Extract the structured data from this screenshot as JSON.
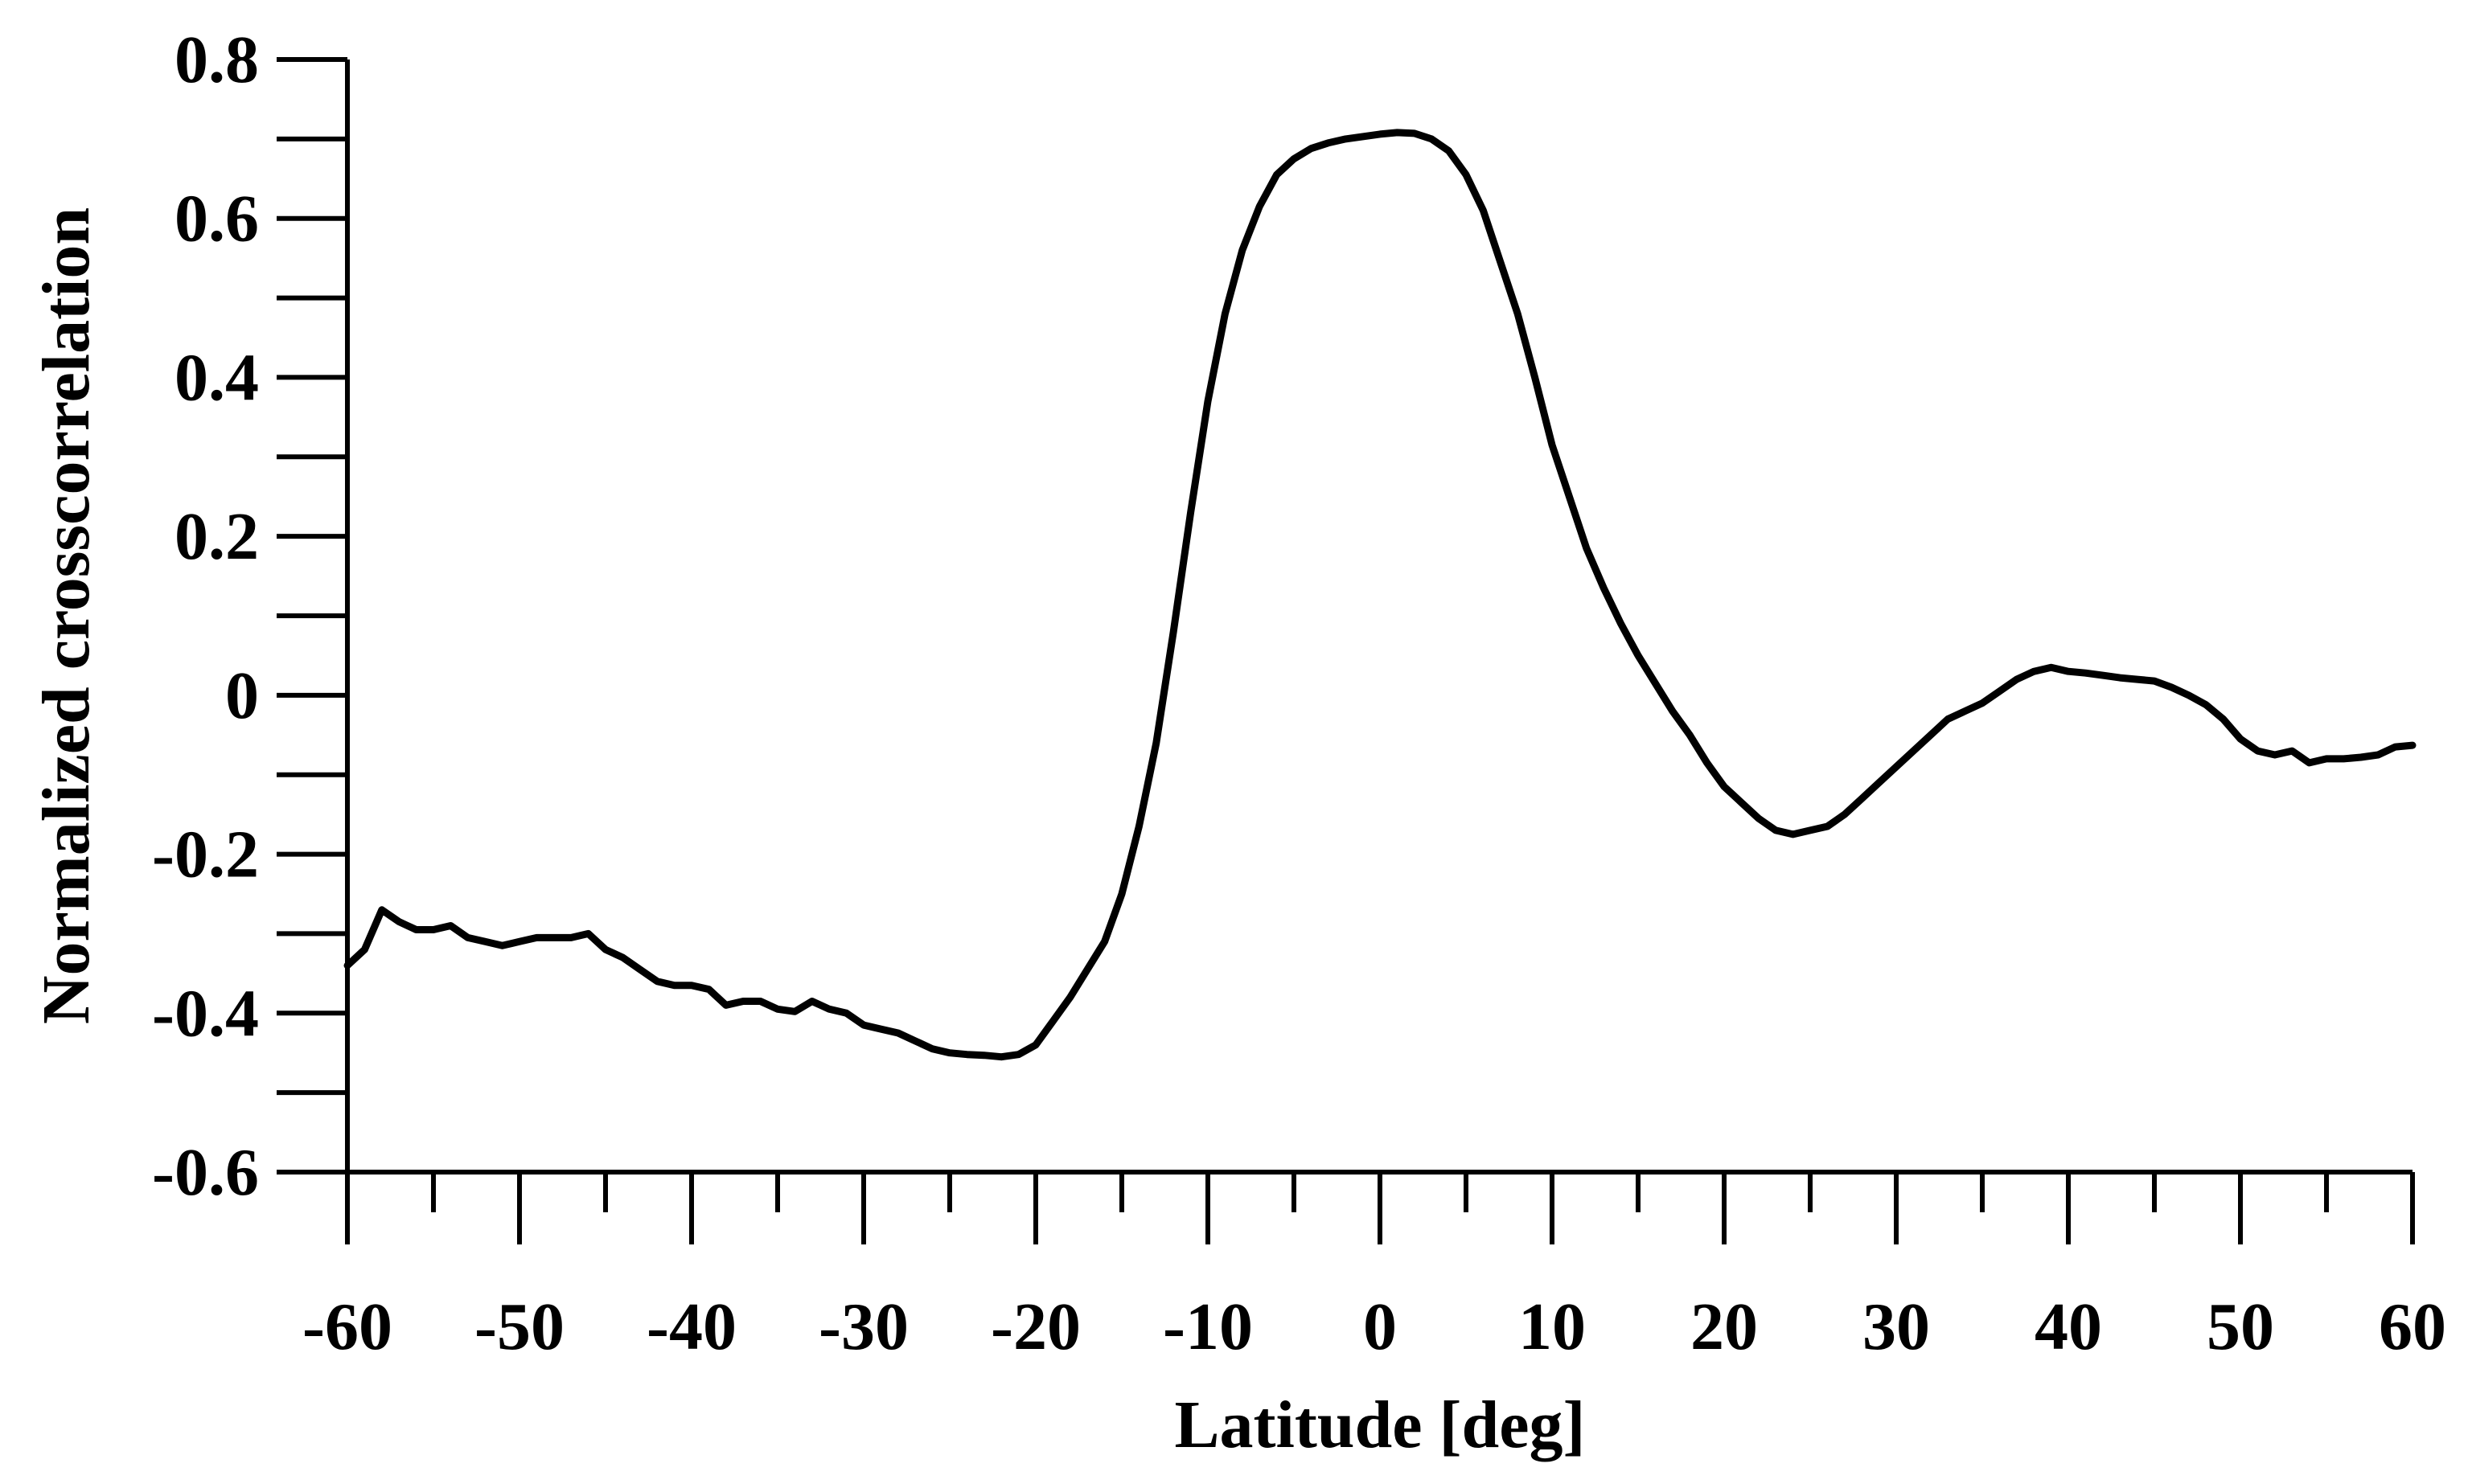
{
  "chart_data": {
    "type": "line",
    "title": "",
    "xlabel": "Latitude [deg]",
    "ylabel": "Normalized crosscorrelation",
    "xlim": [
      -60,
      60
    ],
    "ylim": [
      -0.6,
      0.8
    ],
    "xticks": [
      -60,
      -50,
      -40,
      -30,
      -20,
      -10,
      0,
      10,
      20,
      30,
      40,
      50,
      60
    ],
    "xtick_labels": [
      "-60",
      "-50",
      "-40",
      "-30",
      "-20",
      "-10",
      "0",
      "10",
      "20",
      "30",
      "40",
      "50",
      "60"
    ],
    "xminor_step": 5,
    "yticks": [
      -0.6,
      -0.4,
      -0.2,
      0,
      0.2,
      0.4,
      0.6,
      0.8
    ],
    "ytick_labels": [
      "-0.6",
      "-0.4",
      "-0.2",
      "0",
      "0.2",
      "0.4",
      "0.6",
      "0.8"
    ],
    "yminor_step": 0.1,
    "grid": false,
    "color": "#000000",
    "series": [
      {
        "x": [
          -60,
          -59,
          -58,
          -57,
          -56,
          -55,
          -54,
          -53,
          -52,
          -51,
          -50,
          -49,
          -48,
          -47,
          -46,
          -45,
          -44,
          -43,
          -42,
          -41,
          -40,
          -39,
          -38,
          -37,
          -36,
          -35,
          -34,
          -33,
          -32,
          -31,
          -30,
          -29,
          -28,
          -27,
          -26,
          -25,
          -24,
          -23,
          -22,
          -21,
          -20,
          -19,
          -18,
          -17,
          -16,
          -15,
          -14,
          -13,
          -12,
          -11,
          -10,
          -9,
          -8,
          -7,
          -6,
          -5,
          -4,
          -3,
          -2,
          -1,
          0,
          1,
          2,
          3,
          4,
          5,
          6,
          7,
          8,
          9,
          10,
          11,
          12,
          13,
          14,
          15,
          16,
          17,
          18,
          19,
          20,
          21,
          22,
          23,
          24,
          25,
          26,
          27,
          28,
          29,
          30,
          31,
          32,
          33,
          34,
          35,
          36,
          37,
          38,
          39,
          40,
          41,
          42,
          43,
          44,
          45,
          46,
          47,
          48,
          49,
          50,
          51,
          52,
          53,
          54,
          55,
          56,
          57,
          58,
          59,
          60
        ],
        "y": [
          -0.34,
          -0.32,
          -0.27,
          -0.285,
          -0.295,
          -0.295,
          -0.29,
          -0.305,
          -0.31,
          -0.315,
          -0.31,
          -0.305,
          -0.305,
          -0.305,
          -0.3,
          -0.32,
          -0.33,
          -0.345,
          -0.36,
          -0.365,
          -0.365,
          -0.37,
          -0.39,
          -0.385,
          -0.385,
          -0.395,
          -0.398,
          -0.385,
          -0.395,
          -0.4,
          -0.415,
          -0.42,
          -0.425,
          -0.435,
          -0.445,
          -0.45,
          -0.452,
          -0.453,
          -0.455,
          -0.452,
          -0.44,
          -0.41,
          -0.38,
          -0.345,
          -0.31,
          -0.25,
          -0.165,
          -0.06,
          0.08,
          0.23,
          0.37,
          0.48,
          0.56,
          0.615,
          0.655,
          0.675,
          0.688,
          0.695,
          0.7,
          0.703,
          0.706,
          0.708,
          0.707,
          0.7,
          0.685,
          0.655,
          0.61,
          0.545,
          0.48,
          0.4,
          0.315,
          0.25,
          0.185,
          0.135,
          0.09,
          0.05,
          0.015,
          -0.02,
          -0.05,
          -0.085,
          -0.115,
          -0.135,
          -0.155,
          -0.17,
          -0.175,
          -0.17,
          -0.165,
          -0.15,
          -0.13,
          -0.11,
          -0.09,
          -0.07,
          -0.05,
          -0.03,
          -0.02,
          -0.01,
          0.005,
          0.02,
          0.03,
          0.035,
          0.03,
          0.028,
          0.025,
          0.022,
          0.02,
          0.018,
          0.01,
          0.0,
          -0.012,
          -0.03,
          -0.055,
          -0.07,
          -0.075,
          -0.07,
          -0.085,
          -0.08,
          -0.08,
          -0.078,
          -0.075,
          -0.065,
          -0.063
        ]
      }
    ]
  }
}
